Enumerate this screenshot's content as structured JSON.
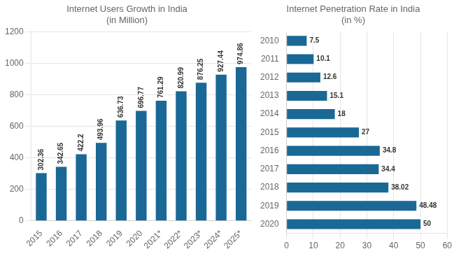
{
  "chart_data": [
    {
      "type": "bar",
      "title": "Internet Users Growth in India\n(in Million)",
      "categories": [
        "2015",
        "2016",
        "2017",
        "2018",
        "2019",
        "2020",
        "2021*",
        "2022*",
        "2023*",
        "2024*",
        "2025*"
      ],
      "values": [
        302.36,
        342.65,
        422.2,
        493.96,
        636.73,
        696.77,
        761.29,
        820.99,
        876.25,
        927.44,
        974.86
      ],
      "color": "#1a6896",
      "ylim": [
        0,
        1200
      ],
      "yticks": [
        0,
        200,
        400,
        600,
        800,
        1000,
        1200
      ],
      "grid": true,
      "data_labels": true
    },
    {
      "type": "bar",
      "orientation": "horizontal",
      "title": "Internet Penetration Rate in India\n(in %)",
      "categories": [
        "2010",
        "2011",
        "2012",
        "2013",
        "2014",
        "2015",
        "2016",
        "2017",
        "2018",
        "2019",
        "2020"
      ],
      "values": [
        7.5,
        10.1,
        12.6,
        15.1,
        18,
        27,
        34.8,
        34.4,
        38.02,
        48.48,
        50
      ],
      "color": "#1a6896",
      "xlim": [
        0,
        60
      ],
      "xticks": [
        0,
        10,
        20,
        30,
        40,
        50,
        60
      ],
      "grid": true,
      "data_labels": true
    }
  ]
}
